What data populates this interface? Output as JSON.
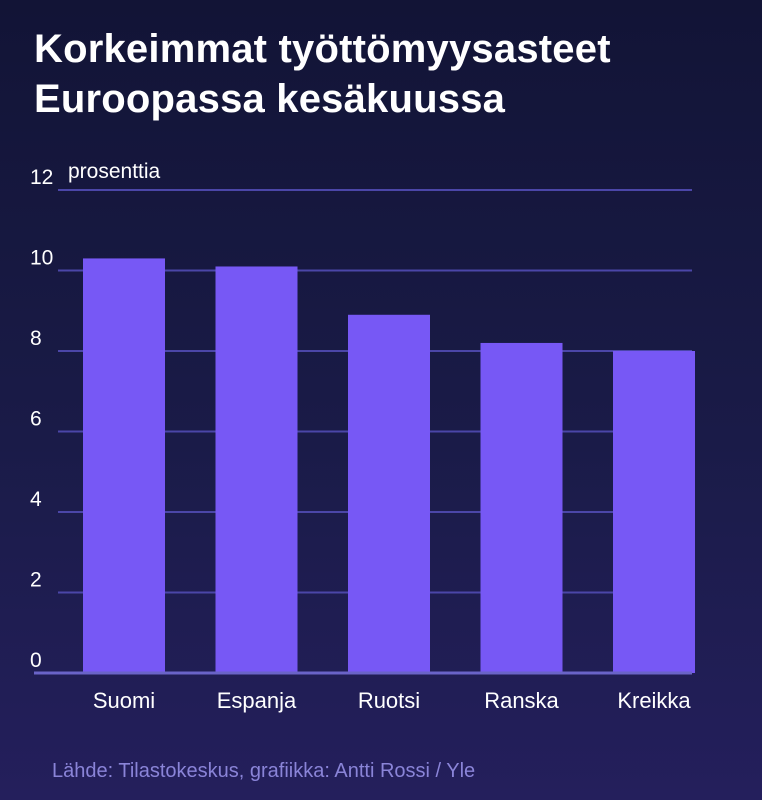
{
  "title_lines": [
    "Korkeimmat työttömyysasteet",
    "Euroopassa kesäkuussa"
  ],
  "source": "Lähde: Tilastokeskus, grafiikka: Antti Rossi / Yle",
  "colors": {
    "bar": "#7758f5",
    "grid": "#4b46a8",
    "baseline": "#6a64c8",
    "text": "#ffffff",
    "source": "#8a84d8"
  },
  "chart_data": {
    "type": "bar",
    "title": "Korkeimmat työttömyysasteet Euroopassa kesäkuussa",
    "ylabel": "prosenttia",
    "categories": [
      "Suomi",
      "Espanja",
      "Ruotsi",
      "Ranska",
      "Kreikka"
    ],
    "values": [
      10.3,
      10.1,
      8.9,
      8.2,
      8.0
    ],
    "ylim": [
      0,
      12
    ],
    "yticks": [
      0,
      2,
      4,
      6,
      8,
      10,
      12
    ],
    "grid": true
  }
}
